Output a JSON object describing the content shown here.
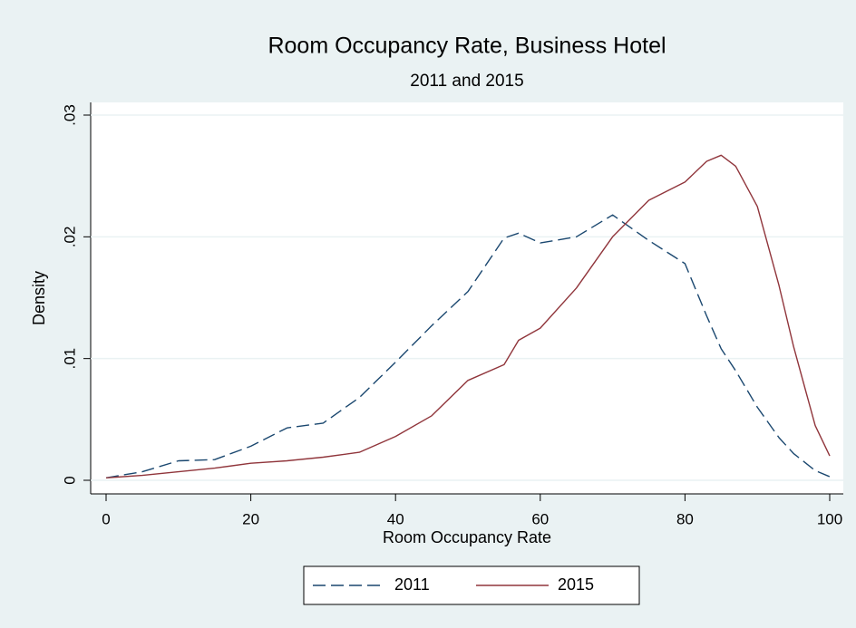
{
  "chart_data": {
    "type": "line",
    "title": "Room Occupancy Rate, Business Hotel",
    "subtitle": "2011 and 2015",
    "x_label": "Room Occupancy Rate",
    "y_label": "Density",
    "x": [
      0,
      5,
      10,
      15,
      20,
      25,
      30,
      35,
      40,
      45,
      50,
      55,
      57,
      60,
      65,
      70,
      75,
      80,
      83,
      85,
      87,
      90,
      93,
      95,
      98,
      100
    ],
    "series": [
      {
        "name": "2011",
        "color": "#1a476f",
        "dashed": true,
        "values": [
          0.0002,
          0.0007,
          0.0016,
          0.0017,
          0.0028,
          0.0043,
          0.0047,
          0.0068,
          0.0097,
          0.0127,
          0.0155,
          0.0199,
          0.0203,
          0.0195,
          0.02,
          0.0218,
          0.0197,
          0.0178,
          0.0135,
          0.0108,
          0.009,
          0.006,
          0.0035,
          0.0022,
          0.0008,
          0.0003
        ]
      },
      {
        "name": "2015",
        "color": "#90353b",
        "dashed": false,
        "values": [
          0.0002,
          0.0004,
          0.0007,
          0.001,
          0.0014,
          0.0016,
          0.0019,
          0.0023,
          0.0036,
          0.0053,
          0.0082,
          0.0095,
          0.0115,
          0.0125,
          0.0158,
          0.02,
          0.023,
          0.0245,
          0.0262,
          0.0267,
          0.0258,
          0.0225,
          0.016,
          0.011,
          0.0045,
          0.002
        ]
      }
    ],
    "xlim": [
      0,
      100
    ],
    "xticks": [
      0,
      20,
      40,
      60,
      80,
      100
    ],
    "ylim": [
      0,
      0.03
    ],
    "yticks": [
      0,
      {
        "value": 0.01,
        "label": ".01"
      },
      {
        "value": 0.02,
        "label": ".02"
      },
      {
        "value": 0.03,
        "label": ".03"
      }
    ],
    "grid": true,
    "legend": "bottom"
  }
}
